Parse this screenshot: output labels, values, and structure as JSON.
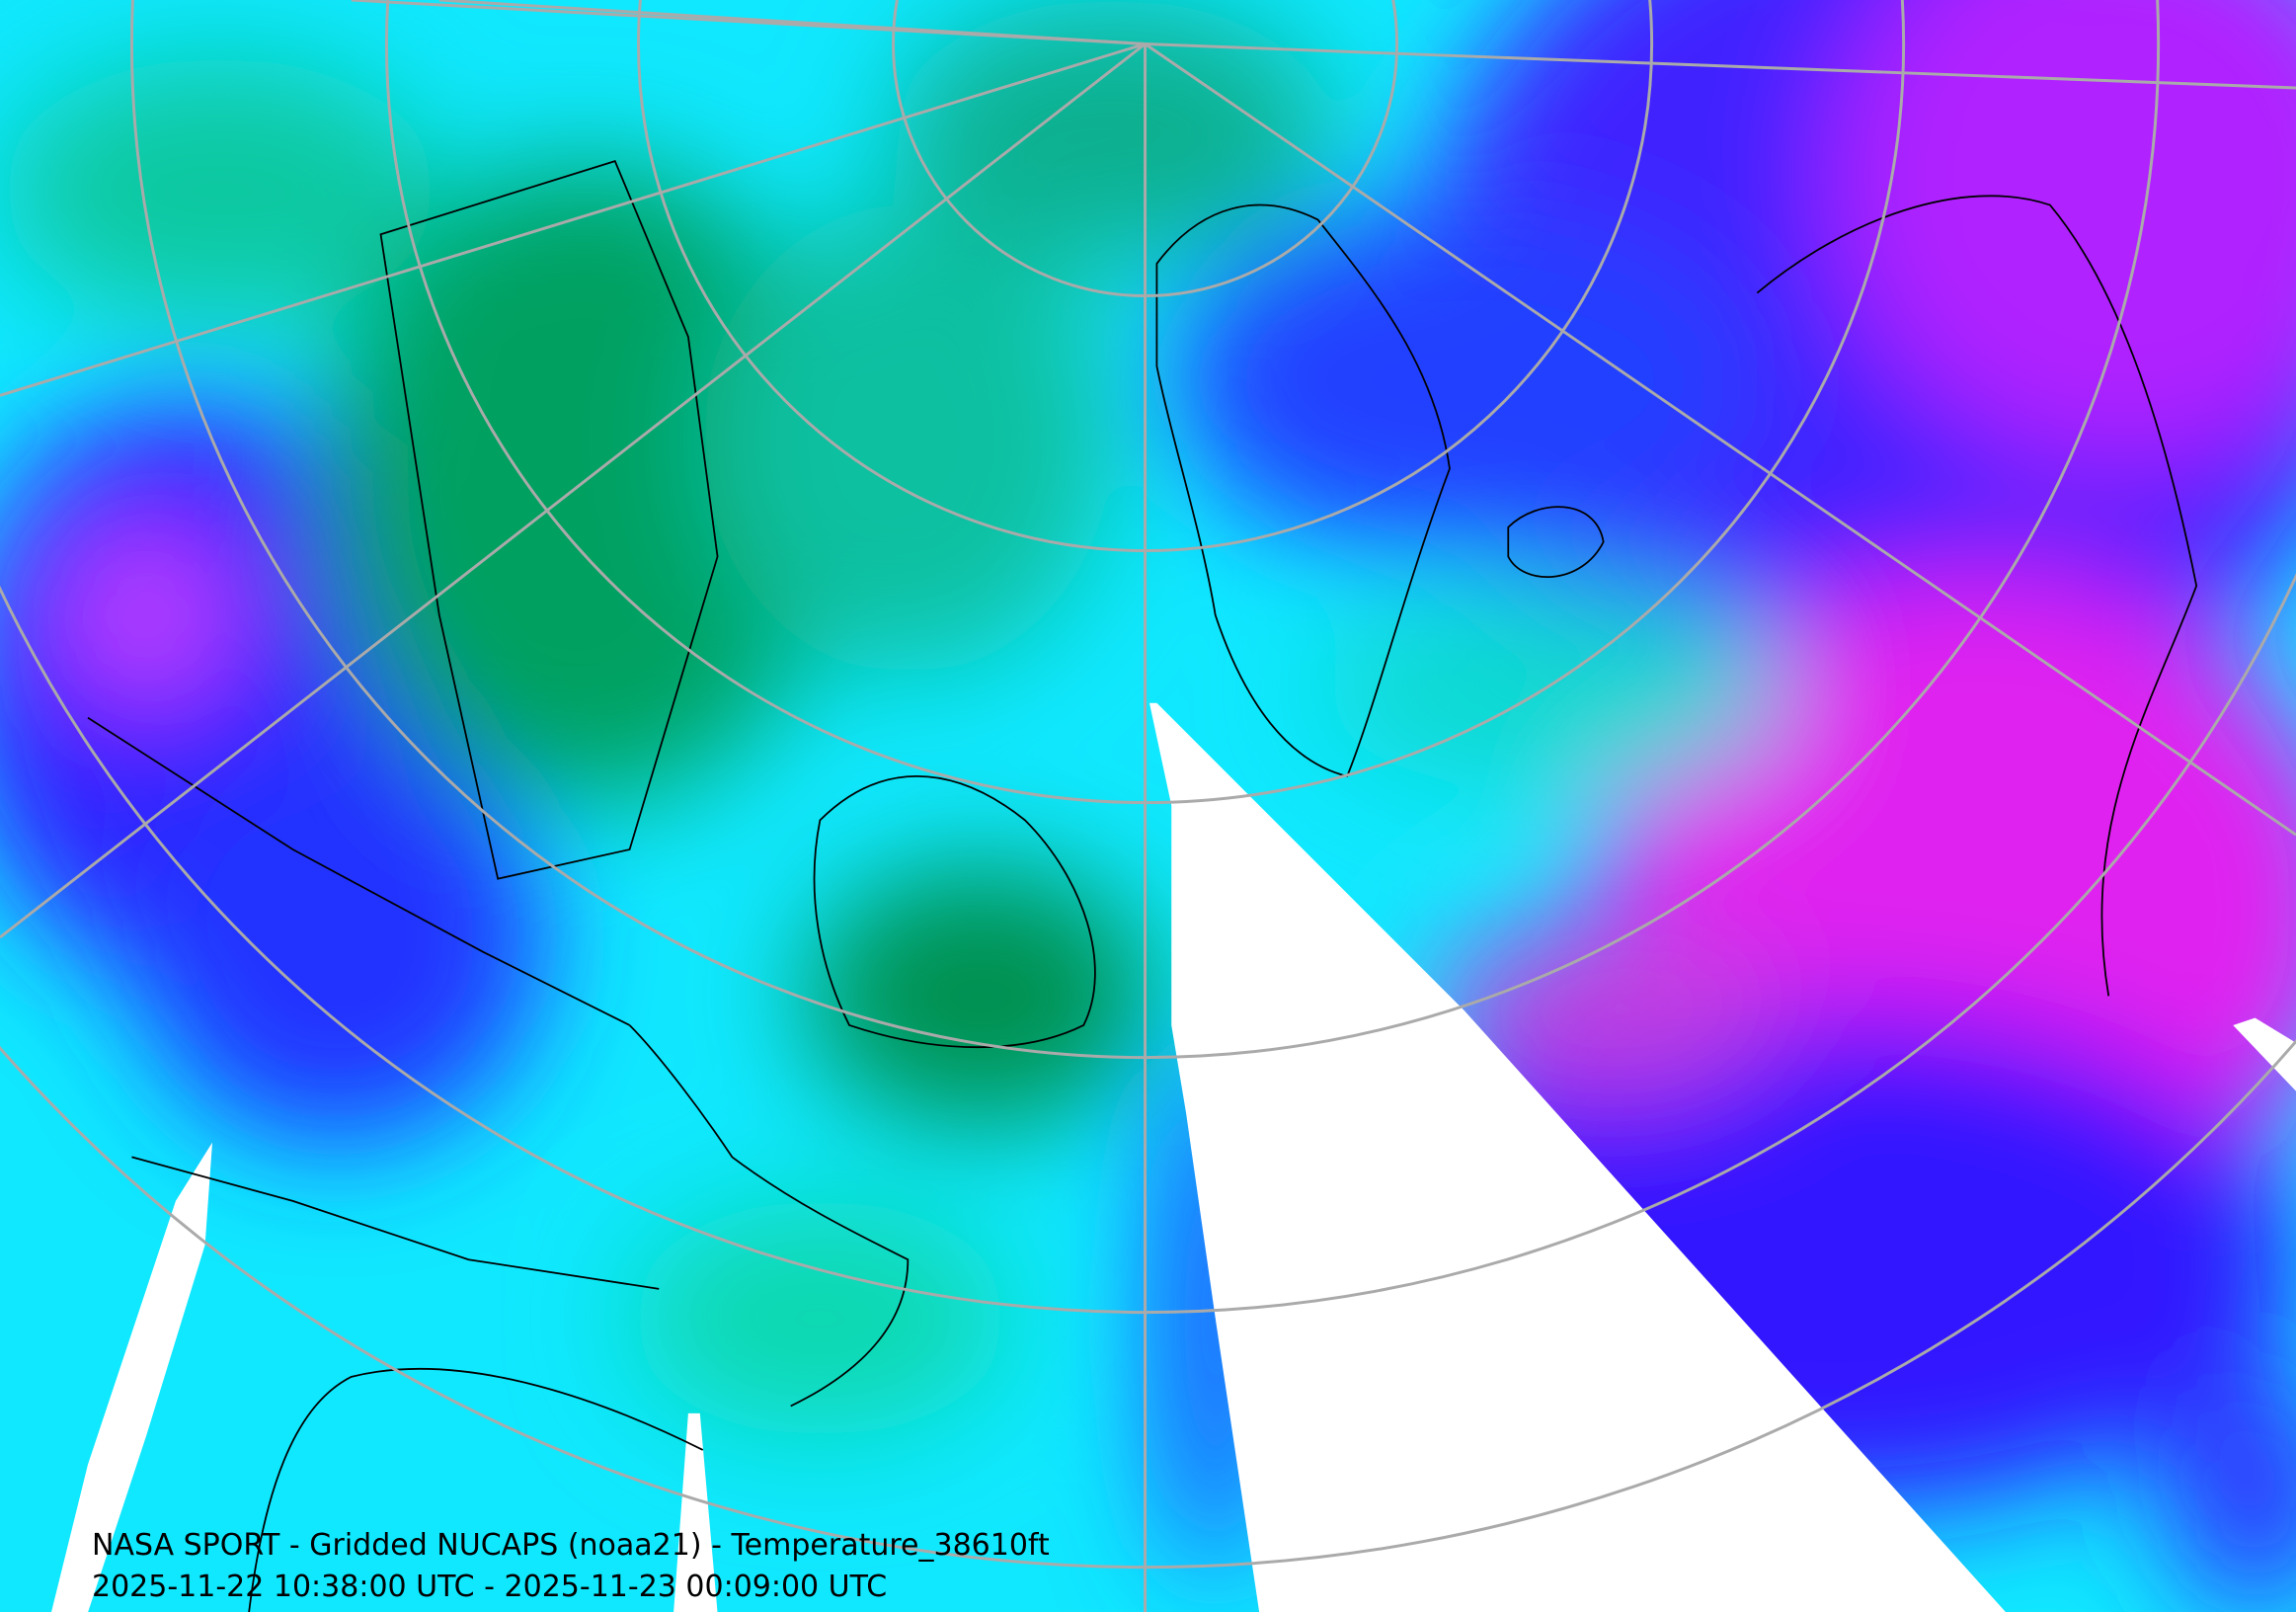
{
  "caption": {
    "title": "NASA SPORT - Gridded NUCAPS (noaa21) - Temperature_38610ft",
    "time_range": "2025-11-22 10:38:00 UTC - 2025-11-23 00:09:00 UTC"
  }
}
